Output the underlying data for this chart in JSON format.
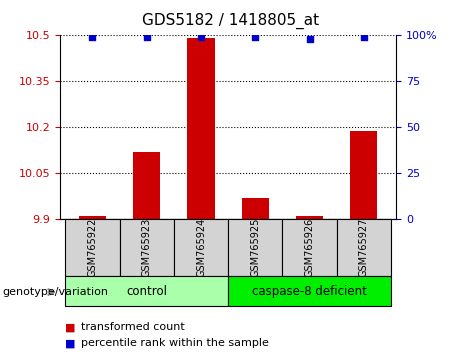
{
  "title": "GDS5182 / 1418805_at",
  "samples": [
    "GSM765922",
    "GSM765923",
    "GSM765924",
    "GSM765925",
    "GSM765926",
    "GSM765927"
  ],
  "bar_values": [
    9.91,
    10.12,
    10.49,
    9.97,
    9.91,
    10.19
  ],
  "percentile_values": [
    99,
    99,
    99,
    99,
    98,
    99
  ],
  "bar_color": "#cc0000",
  "dot_color": "#0000cc",
  "ylim_left": [
    9.9,
    10.5
  ],
  "ylim_right": [
    0,
    100
  ],
  "yticks_left": [
    9.9,
    10.05,
    10.2,
    10.35,
    10.5
  ],
  "ytick_labels_left": [
    "9.9",
    "10.05",
    "10.2",
    "10.35",
    "10.5"
  ],
  "yticks_right": [
    0,
    25,
    50,
    75,
    100
  ],
  "ytick_labels_right": [
    "0",
    "25",
    "50",
    "75",
    "100%"
  ],
  "groups": [
    {
      "label": "control",
      "samples": [
        0,
        1,
        2
      ],
      "color": "#aaffaa"
    },
    {
      "label": "caspase-8 deficient",
      "samples": [
        3,
        4,
        5
      ],
      "color": "#00ee00"
    }
  ],
  "group_label_prefix": "genotype/variation",
  "legend_items": [
    {
      "label": "transformed count",
      "color": "#cc0000",
      "marker": "s"
    },
    {
      "label": "percentile rank within the sample",
      "color": "#0000cc",
      "marker": "s"
    }
  ],
  "grid_color": "#000000",
  "grid_linestyle": "dotted",
  "bar_bottom": 9.9,
  "tick_bg_color": "#d3d3d3",
  "bar_width": 0.5
}
